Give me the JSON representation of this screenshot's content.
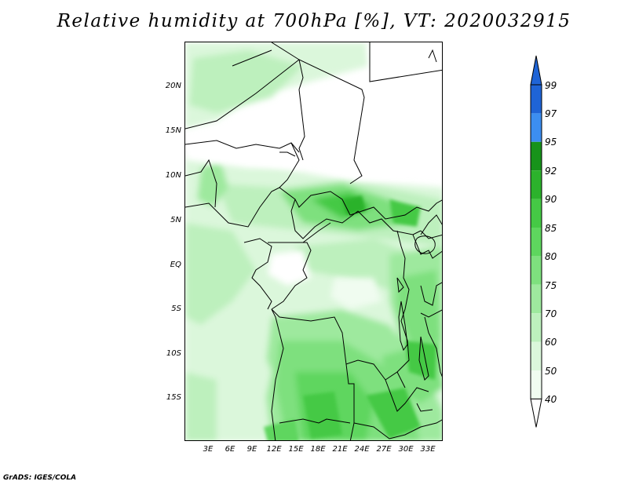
{
  "title": "Relative humidity at 700hPa [%], VT: 2020032915",
  "footer": "GrADS: IGES/COLA",
  "map": {
    "lat_labels": [
      "20N",
      "15N",
      "10N",
      "5N",
      "EQ",
      "5S",
      "10S",
      "15S"
    ],
    "lon_labels": [
      "3E",
      "6E",
      "9E",
      "12E",
      "15E",
      "18E",
      "21E",
      "24E",
      "27E",
      "30E",
      "33E"
    ]
  },
  "colorbar": {
    "labels": [
      "99",
      "97",
      "95",
      "92",
      "90",
      "85",
      "80",
      "75",
      "70",
      "60",
      "50",
      "40"
    ],
    "colors": [
      "#1f64d6",
      "#3c8ef0",
      "#17931a",
      "#2cb22c",
      "#45c945",
      "#5ed65e",
      "#7ee07e",
      "#9ee99e",
      "#bdf0bd",
      "#dbf7db",
      "#f0fcf0"
    ],
    "over_color": "#1f64d6",
    "under_color": "#ffffff"
  }
}
